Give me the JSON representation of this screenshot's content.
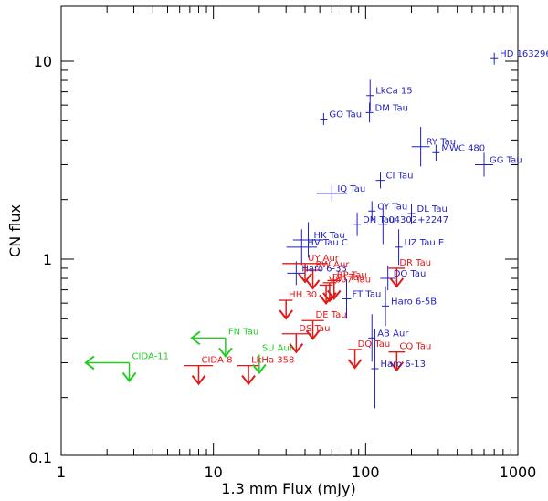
{
  "chart_data": {
    "type": "scatter",
    "xscale": "log",
    "yscale": "log",
    "xlabel": "1.3 mm Flux (mJy)",
    "ylabel": "CN flux",
    "xlim": [
      1,
      1000
    ],
    "ylim": [
      0.1,
      20
    ],
    "xticks": [
      {
        "value": 1,
        "label": "1"
      },
      {
        "value": 10,
        "label": "10"
      },
      {
        "value": 100,
        "label": "100"
      },
      {
        "value": 1000,
        "label": "1000"
      }
    ],
    "yticks": [
      {
        "value": 0.1,
        "label": "0.1"
      },
      {
        "value": 1,
        "label": "1"
      },
      {
        "value": 10,
        "label": "10"
      }
    ],
    "colors": {
      "detection": "#1f1fbf",
      "upper_limit_red": "#e01818",
      "upper_limit_green": "#22cc22"
    },
    "series": [
      {
        "name": "Detections",
        "kind": "detection",
        "color": "#1f1fbf",
        "points": [
          {
            "label": "HD 163296",
            "x": 700,
            "y": 10.3,
            "xerr": 0.02,
            "yerr": 0.03
          },
          {
            "label": "LkCa 15",
            "x": 107,
            "y": 6.7,
            "xerr": 0.01,
            "yerr": 0.08
          },
          {
            "label": "DM Tau",
            "x": 106,
            "y": 5.5,
            "xerr": 0.01,
            "yerr": 0.05
          },
          {
            "label": "GO Tau",
            "x": 53,
            "y": 5.1,
            "xerr": 0.02,
            "yerr": 0.03
          },
          {
            "label": "RY Tau",
            "x": 230,
            "y": 3.7,
            "xerr": 0.06,
            "yerr": 0.1
          },
          {
            "label": "MWC 480",
            "x": 290,
            "y": 3.45,
            "xerr": 0.02,
            "yerr": 0.04
          },
          {
            "label": "GG Tau",
            "x": 600,
            "y": 3.0,
            "xerr": 0.06,
            "yerr": 0.06
          },
          {
            "label": "CI Tau",
            "x": 125,
            "y": 2.5,
            "xerr": 0.03,
            "yerr": 0.04
          },
          {
            "label": "IQ Tau",
            "x": 60,
            "y": 2.15,
            "xerr": 0.1,
            "yerr": 0.04
          },
          {
            "label": "CY Tau",
            "x": 110,
            "y": 1.75,
            "xerr": 0.01,
            "yerr": 0.05
          },
          {
            "label": "DL Tau",
            "x": 200,
            "y": 1.7,
            "xerr": 0.01,
            "yerr": 0.05
          },
          {
            "label": "DN Tau",
            "x": 88,
            "y": 1.5,
            "xerr": 0.02,
            "yerr": 0.06
          },
          {
            "label": "04302+2247",
            "x": 130,
            "y": 1.5,
            "xerr": 0.03,
            "yerr": 0.1
          },
          {
            "label": "HK Tau",
            "x": 42,
            "y": 1.25,
            "xerr": 0.1,
            "yerr": 0.09
          },
          {
            "label": "HV Tau C",
            "x": 38,
            "y": 1.15,
            "xerr": 0.1,
            "yerr": 0.09
          },
          {
            "label": "UZ Tau E",
            "x": 165,
            "y": 1.15,
            "xerr": 0.01,
            "yerr": 0.09
          },
          {
            "label": "Haro 6-33",
            "x": 35,
            "y": 0.85,
            "xerr": 0.06,
            "yerr": 0.06
          },
          {
            "label": "DO Tau",
            "x": 140,
            "y": 0.8,
            "xerr": 0.05,
            "yerr": 0.06
          },
          {
            "label": "FT Tau",
            "x": 75,
            "y": 0.63,
            "xerr": 0.03,
            "yerr": 0.1
          },
          {
            "label": "Haro 6-5B",
            "x": 135,
            "y": 0.58,
            "xerr": 0.01,
            "yerr": 0.1
          },
          {
            "label": "AB Aur",
            "x": 110,
            "y": 0.4,
            "xerr": 0.01,
            "yerr": 0.12
          },
          {
            "label": "Haro 6-13",
            "x": 115,
            "y": 0.28,
            "xerr": 0.01,
            "yerr": 0.2
          }
        ]
      },
      {
        "name": "Upper limits",
        "kind": "upper_limit",
        "color": "#e01818",
        "points": [
          {
            "label": "UY Aur",
            "x": 40,
            "y": 0.95,
            "xbar": 0.15
          },
          {
            "label": "RW Aur",
            "x": 45,
            "y": 0.88,
            "xbar": 0.06
          },
          {
            "label": "DR Tau",
            "x": 160,
            "y": 0.9,
            "xbar": 0.06
          },
          {
            "label": "BP Tau",
            "x": 62,
            "y": 0.78,
            "xbar": 0.05
          },
          {
            "label": "DH Tau",
            "x": 58,
            "y": 0.76,
            "xbar": 0.05
          },
          {
            "label": "V807 Tau",
            "x": 55,
            "y": 0.74,
            "xbar": 0.05
          },
          {
            "label": "HH 30",
            "x": 30,
            "y": 0.62,
            "xbar": 0.05
          },
          {
            "label": "DE Tau",
            "x": 45,
            "y": 0.49,
            "xbar": 0.08
          },
          {
            "label": "DS Tau",
            "x": 35,
            "y": 0.42,
            "xbar": 0.1
          },
          {
            "label": "CIDA-8",
            "x": 8,
            "y": 0.29,
            "xbar": 0.1
          },
          {
            "label": "LkHa 358",
            "x": 17,
            "y": 0.29,
            "xbar": 0.08
          },
          {
            "label": "DQ Tau",
            "x": 85,
            "y": 0.35,
            "xbar": 0.05
          },
          {
            "label": "CQ Tau",
            "x": 160,
            "y": 0.34,
            "xbar": 0.06
          }
        ]
      },
      {
        "name": "Upper limits (green)",
        "kind": "upper_limit_left",
        "color": "#22cc22",
        "points": [
          {
            "label": "CIDA-11",
            "x": 2.8,
            "y": 0.3,
            "xleft": 1.45
          },
          {
            "label": "FN Tau",
            "x": 12,
            "y": 0.4,
            "xleft": 7.2
          },
          {
            "label": "SU Aur",
            "x": 20,
            "y": 0.33,
            "xleft": null
          }
        ]
      }
    ]
  }
}
